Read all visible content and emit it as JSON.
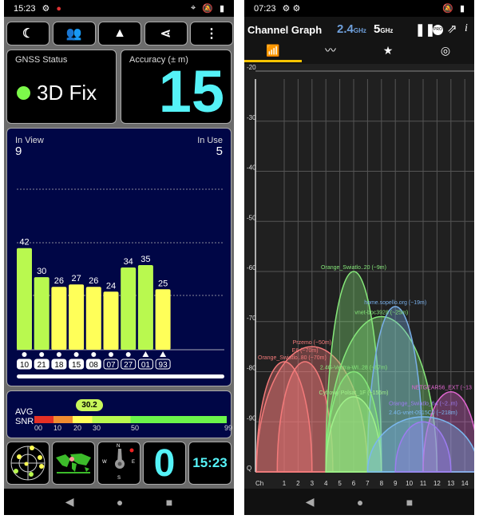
{
  "left_app": {
    "status_bar": {
      "time": "15:23"
    },
    "toolbar": [
      {
        "icon": "moon-icon",
        "glyph": "☾"
      },
      {
        "icon": "people-flag-icon",
        "glyph": "👥"
      },
      {
        "icon": "navigation-arrow-icon",
        "glyph": "▲"
      },
      {
        "icon": "share-icon",
        "glyph": "⋖"
      },
      {
        "icon": "more-vert-icon",
        "glyph": "⋮"
      }
    ],
    "gnss_status": {
      "label": "GNSS Status",
      "value": "3D Fix",
      "dot_color": "#7cf94a"
    },
    "accuracy": {
      "label": "Accuracy (± m)",
      "value": "15",
      "color": "#55f2f7"
    },
    "sky": {
      "in_view_label": "In View",
      "in_view": "9",
      "in_use_label": "In Use",
      "in_use": "5"
    },
    "satellites": [
      {
        "id": "10",
        "snr": 42,
        "shape": "circle",
        "used": true
      },
      {
        "id": "21",
        "snr": 30,
        "shape": "circle",
        "used": true
      },
      {
        "id": "18",
        "snr": 26,
        "shape": "circle",
        "used": true
      },
      {
        "id": "15",
        "snr": 27,
        "shape": "circle",
        "used": true
      },
      {
        "id": "08",
        "snr": 26,
        "shape": "circle",
        "used": true
      },
      {
        "id": "07",
        "snr": 24,
        "shape": "circle",
        "used": false
      },
      {
        "id": "27",
        "snr": 34,
        "shape": "circle",
        "used": false
      },
      {
        "id": "01",
        "snr": 35,
        "shape": "triangle",
        "used": false
      },
      {
        "id": "93",
        "snr": 25,
        "shape": "triangle",
        "used": false
      }
    ],
    "colors": {
      "strong": "#b9f94f",
      "weak": "#ffff59"
    },
    "avg_snr": {
      "label_top": "AVG",
      "label_bottom": "SNR",
      "value": "30.2",
      "ticks": [
        "00",
        "10",
        "20",
        "30",
        "50",
        "99"
      ]
    },
    "tiles": {
      "sats_count": "0",
      "clock": "15:23",
      "compass": {
        "n": "N",
        "e": "E",
        "s": "S",
        "w": "W"
      }
    }
  },
  "right_app": {
    "status_bar": {
      "time": "07:23"
    },
    "title": "Channel Graph",
    "band_24": "2.4",
    "band_24_unit": "GHz",
    "band_5": "5",
    "band_5_unit": "GHz",
    "tabs": [
      "channel-graph-icon",
      "time-graph-icon",
      "channel-rating-icon",
      "access-points-icon"
    ],
    "accent": "#f5c400"
  },
  "chart_data": {
    "type": "area",
    "xlabel": "Ch",
    "x_ticks": [
      "1",
      "2",
      "3",
      "4",
      "5",
      "6",
      "7",
      "8",
      "9",
      "10",
      "11",
      "12",
      "13",
      "14"
    ],
    "y_ticks": [
      "-20",
      "-30",
      "-40",
      "-50",
      "-60",
      "-70",
      "-80",
      "-90",
      "Q"
    ],
    "ylim": [
      -100,
      -20
    ],
    "grid": true,
    "networks": [
      {
        "name": "Przemo (~50m)",
        "channel": 3,
        "dbm": -75,
        "width": 4,
        "color": "#f47a7a"
      },
      {
        "name": "Orange_Swiatlo..80 (~70m)",
        "channel": 1,
        "dbm": -78,
        "width": 2,
        "color": "#f47a7a"
      },
      {
        "name": "E6 (~70m)",
        "channel": 2.5,
        "dbm": -78,
        "width": 2,
        "color": "#f47a7a"
      },
      {
        "name": "Orange_Swiatlo..20 (~9m)",
        "channel": 6,
        "dbm": -60,
        "width": 2,
        "color": "#86e87a"
      },
      {
        "name": "vnet-bpc3928 (~25m)",
        "channel": 8,
        "dbm": -69,
        "width": 4,
        "color": "#86e87a"
      },
      {
        "name": "home.sopello.org (~19m)",
        "channel": 9,
        "dbm": -67,
        "width": 2,
        "color": "#78aee8"
      },
      {
        "name": "2.4G-Vectra-WI..28 (~87m)",
        "channel": 6,
        "dbm": -80,
        "width": 2,
        "color": "#86e87a"
      },
      {
        "name": "Cyfrowy Polsat_1F (~155m)",
        "channel": 6,
        "dbm": -85,
        "width": 2,
        "color": "#a0f08a"
      },
      {
        "name": "NETGEAR56_EXT (~13",
        "channel": 13,
        "dbm": -84,
        "width": 2,
        "color": "#e066d0"
      },
      {
        "name": "2.4G-vnet-0915C0 (~218m)",
        "channel": 11,
        "dbm": -89,
        "width": 4,
        "color": "#7ab8f0"
      },
      {
        "name": "Orange_Swiatlo_64 (~2..m)",
        "channel": 11,
        "dbm": -90,
        "width": 2,
        "color": "#9c7cf0"
      }
    ]
  }
}
